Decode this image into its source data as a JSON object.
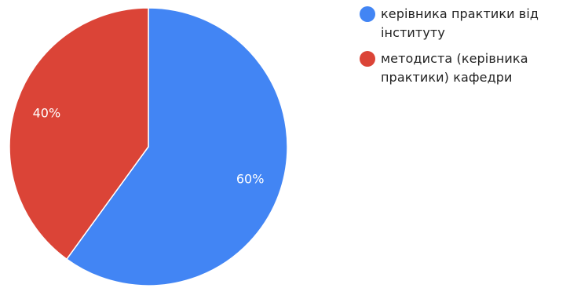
{
  "chart_data": {
    "type": "pie",
    "title": "",
    "slices": [
      {
        "label": "керівника практики від інституту",
        "value": 60,
        "display": "60%",
        "color": "#4285f4"
      },
      {
        "label": "методиста (керівника практики) кафедри",
        "value": 40,
        "display": "40%",
        "color": "#db4437"
      }
    ],
    "legend_position": "right",
    "start_angle": "12 o'clock",
    "direction": "clockwise"
  },
  "legend": {
    "items": [
      {
        "lines": [
          "керівника практики від",
          "інституту"
        ]
      },
      {
        "lines": [
          "методиста (керівника",
          "практики) кафедри"
        ]
      }
    ]
  }
}
